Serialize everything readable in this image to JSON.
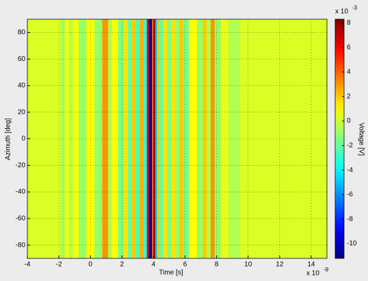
{
  "chart_data": {
    "type": "heatmap",
    "xlabel": "Time [s]",
    "ylabel": "Azimuth [deg]",
    "colorbar_label": "Voltage [V]",
    "x_exponent": {
      "base": "x 10",
      "power": "-9"
    },
    "colorbar_exponent": {
      "base": "x 10",
      "power": "-3"
    },
    "colormap": "jet",
    "xlim": [
      -4,
      15
    ],
    "xticks": [
      -4,
      -2,
      0,
      2,
      4,
      6,
      8,
      10,
      12,
      14
    ],
    "ylim": [
      -90,
      90
    ],
    "yticks": [
      -80,
      -60,
      -40,
      -20,
      0,
      20,
      40,
      60,
      80
    ],
    "clim": [
      -11.2,
      8.3
    ],
    "cticks": [
      -10,
      -8,
      -6,
      -4,
      -2,
      0,
      2,
      4,
      6,
      8
    ],
    "grid": true,
    "x": [
      -4,
      -2,
      -1.75,
      -1.5,
      -1.25,
      -1,
      -0.5,
      0,
      0.5,
      1,
      1.25,
      1.5,
      2,
      2.25,
      2.5,
      2.75,
      3,
      3.25,
      3.5,
      3.65,
      3.75,
      3.85,
      3.95,
      4.05,
      4.15,
      4.3,
      4.5,
      4.75,
      5,
      5.25,
      5.5,
      5.75,
      6,
      6.5,
      7,
      7.25,
      7.5,
      7.75,
      8,
      8.5,
      9,
      10,
      15
    ],
    "values": [
      0.3,
      0.3,
      -1,
      1,
      -0.5,
      0.8,
      -1,
      1,
      -1,
      3,
      -0.5,
      1,
      -1.5,
      1.5,
      -2,
      2,
      -2.5,
      2.5,
      -3,
      6,
      -10,
      -11,
      4,
      8,
      -5,
      2,
      -2,
      1.5,
      -1.5,
      1.5,
      -1,
      2,
      -1.5,
      1,
      -1,
      2,
      -0.5,
      3,
      -1,
      0.5,
      -0.5,
      0.3,
      0.3
    ]
  }
}
